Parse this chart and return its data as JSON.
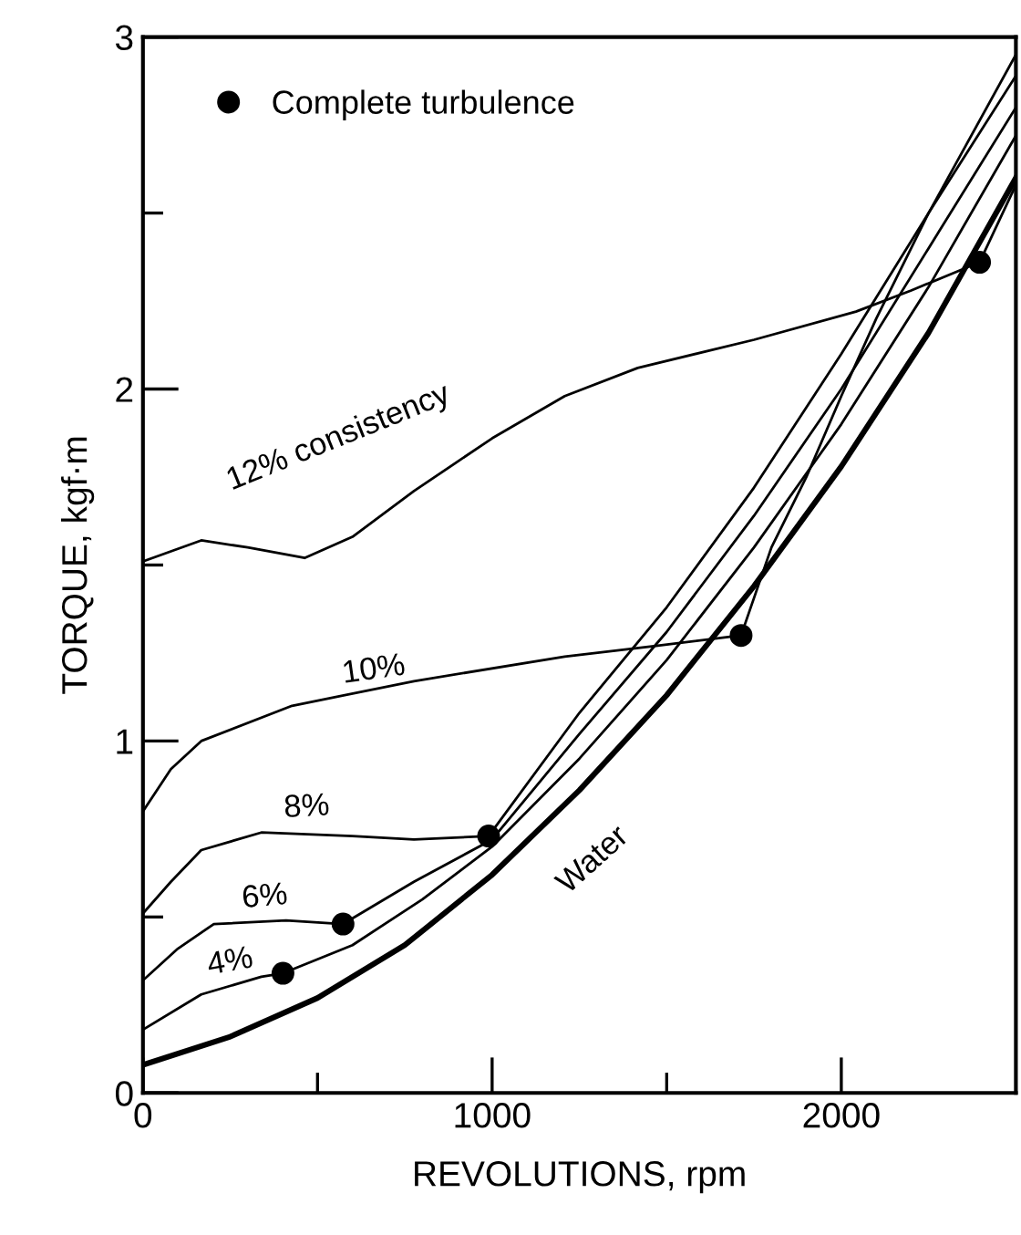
{
  "chart_data": {
    "type": "line",
    "xlabel": "REVOLUTIONS, rpm",
    "ylabel": "TORQUE, kgf·m",
    "xlim": [
      0,
      2500
    ],
    "ylim": [
      0,
      3
    ],
    "xticks": [
      0,
      {
        "value": 500,
        "label": null
      },
      1000,
      {
        "value": 1500,
        "label": null
      },
      2000
    ],
    "yticks": [
      0,
      {
        "value": 0.5,
        "label": null
      },
      1,
      {
        "value": 1.5,
        "label": null
      },
      2,
      {
        "value": 2.5,
        "label": null
      },
      3
    ],
    "grid": false,
    "legend": "top left",
    "marker": "none",
    "line_style": "solid",
    "series": [
      {
        "name": "Water",
        "color": "#000000",
        "x": [
          0,
          250,
          500,
          750,
          1000,
          1250,
          1500,
          1750,
          2000,
          2250,
          2500
        ],
        "values": [
          0.08,
          0.16,
          0.27,
          0.42,
          0.62,
          0.86,
          1.13,
          1.44,
          1.78,
          2.16,
          2.6
        ]
      },
      {
        "name": "4%",
        "color": "#000000",
        "x": [
          0,
          167,
          339,
          401,
          600,
          800,
          1000,
          1250,
          1500,
          1750,
          2000,
          2250,
          2500
        ],
        "values": [
          0.18,
          0.28,
          0.33,
          0.34,
          0.42,
          0.55,
          0.7,
          0.95,
          1.23,
          1.55,
          1.9,
          2.29,
          2.72
        ]
      },
      {
        "name": "6%",
        "color": "#000000",
        "x": [
          0,
          100,
          203,
          410,
          573,
          776,
          1000,
          1250,
          1500,
          1750,
          2000,
          2250,
          2500
        ],
        "values": [
          0.32,
          0.41,
          0.48,
          0.49,
          0.48,
          0.6,
          0.72,
          1.02,
          1.31,
          1.64,
          2.0,
          2.4,
          2.8
        ]
      },
      {
        "name": "8%",
        "color": "#000000",
        "x": [
          0,
          80,
          167,
          339,
          600,
          776,
          990,
          1250,
          1500,
          1750,
          2000,
          2250,
          2500
        ],
        "values": [
          0.51,
          0.6,
          0.69,
          0.74,
          0.73,
          0.72,
          0.73,
          1.08,
          1.38,
          1.72,
          2.1,
          2.5,
          2.89
        ]
      },
      {
        "name": "10%",
        "color": "#000000",
        "x": [
          0,
          80,
          167,
          427,
          776,
          1208,
          1469,
          1713,
          1800,
          1900,
          2000,
          2100,
          2250,
          2500
        ],
        "values": [
          0.8,
          0.92,
          1.0,
          1.1,
          1.17,
          1.24,
          1.27,
          1.3,
          1.55,
          1.75,
          1.98,
          2.2,
          2.5,
          2.95
        ]
      },
      {
        "name": "12% consistency",
        "color": "#000000",
        "x": [
          0,
          167,
          300,
          463,
          600,
          776,
          1000,
          1208,
          1417,
          1750,
          2042,
          2200,
          2396,
          2500
        ],
        "values": [
          1.51,
          1.57,
          1.55,
          1.52,
          1.58,
          1.71,
          1.86,
          1.98,
          2.06,
          2.14,
          2.22,
          2.28,
          2.36,
          2.58
        ]
      },
      {
        "name": "Complete turbulence",
        "type": "scatter",
        "marker": "circle",
        "color": "#000000",
        "x": [
          401,
          573,
          990,
          1713,
          2396
        ],
        "values": [
          0.34,
          0.48,
          0.73,
          1.3,
          2.36
        ]
      }
    ]
  }
}
